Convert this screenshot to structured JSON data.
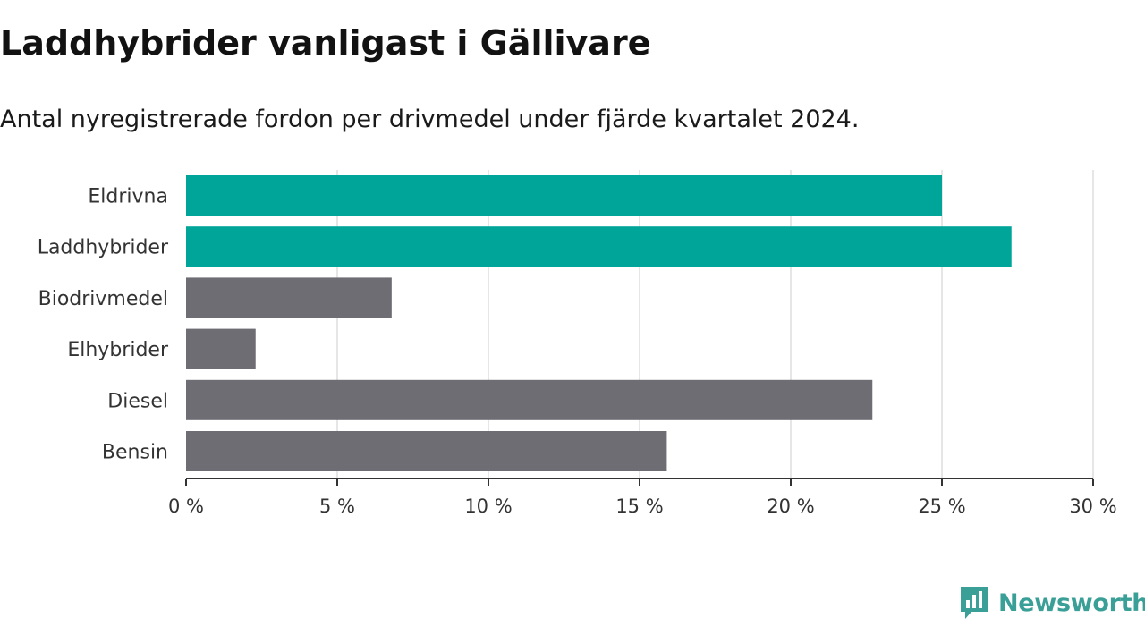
{
  "header": {
    "title": "Laddhybrider vanligast i Gällivare",
    "subtitle": "Antal nyregistrerade fordon per drivmedel under fjärde kvartalet 2024."
  },
  "brand": {
    "name": "Newsworthy",
    "icon": "newsworthy-logo-icon",
    "color": "#3a9f96"
  },
  "colors": {
    "highlight": "#00a59a",
    "default": "#6e6d74",
    "grid": "#dddddd",
    "axis": "#333333"
  },
  "chart_data": {
    "type": "bar",
    "orientation": "horizontal",
    "categories": [
      "Eldrivna",
      "Laddhybrider",
      "Biodrivmedel",
      "Elhybrider",
      "Diesel",
      "Bensin"
    ],
    "values": [
      25.0,
      27.3,
      6.8,
      2.3,
      22.7,
      15.9
    ],
    "highlighted": [
      true,
      true,
      false,
      false,
      false,
      false
    ],
    "xlim": [
      0,
      30
    ],
    "xticks": [
      0,
      5,
      10,
      15,
      20,
      25,
      30
    ],
    "xtick_labels": [
      "0 %",
      "5 %",
      "10 %",
      "15 %",
      "20 %",
      "25 %",
      "30 %"
    ],
    "unit": "%",
    "grid": true,
    "legend": "none"
  }
}
